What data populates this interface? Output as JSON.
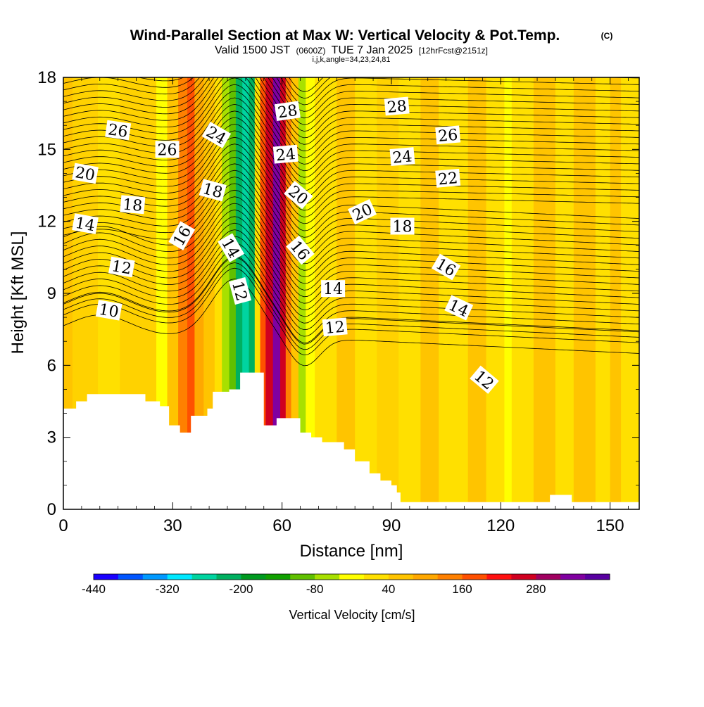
{
  "title": {
    "main": "Wind-Parallel Section at Max W: Vertical Velocity & Pot.Temp.",
    "copyright": "(C)",
    "valid_prefix": "Valid 1500 JST",
    "valid_z": "(0600Z)",
    "valid_date": "TUE 7 Jan 2025",
    "forecast": "[12hrFcst@2151z]",
    "indices": "i,j,k,angle=34,23,24,81"
  },
  "chart_data": {
    "type": "heatmap",
    "xlabel": "Distance [nm]",
    "ylabel": "Height [Kft MSL]",
    "xlim": [
      0,
      158
    ],
    "ylim": [
      0,
      18
    ],
    "x_ticks": [
      0,
      30,
      60,
      90,
      120,
      150
    ],
    "y_ticks": [
      0,
      3,
      6,
      9,
      12,
      15,
      18
    ],
    "colorbar": {
      "label": "Vertical Velocity [cm/s]",
      "tick_values": [
        -440,
        -320,
        -200,
        -80,
        40,
        160,
        280
      ],
      "colors": [
        "#1a00ff",
        "#0055ff",
        "#0099ff",
        "#00e8ff",
        "#00d4a0",
        "#00b060",
        "#009a20",
        "#10a000",
        "#60c000",
        "#a8e000",
        "#ffff00",
        "#ffe000",
        "#ffc400",
        "#ffa800",
        "#ff8000",
        "#ff5000",
        "#ff1010",
        "#d00020",
        "#a00060",
        "#8000a0",
        "#5800a0"
      ]
    },
    "velocity_columns": [
      {
        "x": 0,
        "w": 2.5,
        "color": "#ffc400"
      },
      {
        "x": 2.5,
        "w": 7,
        "color": "#ffd200"
      },
      {
        "x": 9.5,
        "w": 6,
        "color": "#ffe000"
      },
      {
        "x": 15.5,
        "w": 10,
        "color": "#ffd200"
      },
      {
        "x": 25.5,
        "w": 3,
        "color": "#ffff00"
      },
      {
        "x": 28.5,
        "w": 3,
        "color": "#ffc400"
      },
      {
        "x": 31.5,
        "w": 2.5,
        "color": "#ff8000"
      },
      {
        "x": 34,
        "w": 2,
        "color": "#ff5000"
      },
      {
        "x": 36,
        "w": 2.5,
        "color": "#ffa800"
      },
      {
        "x": 38.5,
        "w": 3,
        "color": "#ffc400"
      },
      {
        "x": 41.5,
        "w": 2,
        "color": "#ffe000"
      },
      {
        "x": 43.5,
        "w": 2,
        "color": "#a8e000"
      },
      {
        "x": 45.5,
        "w": 1.8,
        "color": "#60c000"
      },
      {
        "x": 47.3,
        "w": 1.8,
        "color": "#00b060"
      },
      {
        "x": 49.1,
        "w": 1.8,
        "color": "#00d4a0"
      },
      {
        "x": 50.9,
        "w": 1.6,
        "color": "#00b060"
      },
      {
        "x": 52.5,
        "w": 1.5,
        "color": "#ffe000"
      },
      {
        "x": 54,
        "w": 1.5,
        "color": "#ff5000"
      },
      {
        "x": 55.5,
        "w": 2,
        "color": "#d00020"
      },
      {
        "x": 57.5,
        "w": 2,
        "color": "#8000a0"
      },
      {
        "x": 59.5,
        "w": 1.5,
        "color": "#d00020"
      },
      {
        "x": 61,
        "w": 1.5,
        "color": "#ff8000"
      },
      {
        "x": 62.5,
        "w": 2,
        "color": "#ffc400"
      },
      {
        "x": 64.5,
        "w": 2,
        "color": "#a8e000"
      },
      {
        "x": 66.5,
        "w": 2.5,
        "color": "#ffff00"
      },
      {
        "x": 69,
        "w": 6,
        "color": "#ffe000"
      },
      {
        "x": 75,
        "w": 5,
        "color": "#ffc400"
      },
      {
        "x": 80,
        "w": 6,
        "color": "#ffe000"
      },
      {
        "x": 86,
        "w": 6,
        "color": "#ffd200"
      },
      {
        "x": 92,
        "w": 6,
        "color": "#ffe000"
      },
      {
        "x": 98,
        "w": 5,
        "color": "#ffc400"
      },
      {
        "x": 103,
        "w": 8,
        "color": "#ffe000"
      },
      {
        "x": 111,
        "w": 5,
        "color": "#ffc400"
      },
      {
        "x": 116,
        "w": 5,
        "color": "#ffe000"
      },
      {
        "x": 121,
        "w": 2,
        "color": "#ffff00"
      },
      {
        "x": 123,
        "w": 6,
        "color": "#ffe000"
      },
      {
        "x": 129,
        "w": 6,
        "color": "#ffc400"
      },
      {
        "x": 135,
        "w": 5,
        "color": "#ffe000"
      },
      {
        "x": 140,
        "w": 6,
        "color": "#ffc400"
      },
      {
        "x": 146,
        "w": 4,
        "color": "#ffe000"
      },
      {
        "x": 150,
        "w": 3,
        "color": "#ffc400"
      },
      {
        "x": 153,
        "w": 5,
        "color": "#ffe000"
      }
    ],
    "terrain_steps": [
      [
        0,
        4.2
      ],
      [
        3.5,
        4.5
      ],
      [
        6.5,
        4.8
      ],
      [
        22.5,
        4.5
      ],
      [
        26.5,
        4.3
      ],
      [
        29,
        3.5
      ],
      [
        32,
        3.2
      ],
      [
        35,
        3.9
      ],
      [
        39.5,
        4.2
      ],
      [
        41,
        4.9
      ],
      [
        45.5,
        5.0
      ],
      [
        48.5,
        5.7
      ],
      [
        55,
        3.5
      ],
      [
        58.5,
        3.8
      ],
      [
        65,
        3.2
      ],
      [
        68,
        3.0
      ],
      [
        71,
        2.8
      ],
      [
        77,
        2.5
      ],
      [
        80,
        2.0
      ],
      [
        84,
        1.5
      ],
      [
        87,
        1.2
      ],
      [
        90,
        1.0
      ],
      [
        91.5,
        0.7
      ],
      [
        92.5,
        0.3
      ],
      [
        133.5,
        0.6
      ],
      [
        139.5,
        0.3
      ],
      [
        158,
        0.3
      ]
    ],
    "theta_contour_labels": [
      {
        "x": 15,
        "y": 15.8,
        "text": "26",
        "angle": 8
      },
      {
        "x": 28.5,
        "y": 15.0,
        "text": "26",
        "angle": 0
      },
      {
        "x": 42,
        "y": 15.6,
        "text": "24",
        "angle": 30
      },
      {
        "x": 61.5,
        "y": 16.6,
        "text": "28",
        "angle": -8
      },
      {
        "x": 91.5,
        "y": 16.8,
        "text": "28",
        "angle": -5
      },
      {
        "x": 105.5,
        "y": 15.6,
        "text": "26",
        "angle": -5
      },
      {
        "x": 61,
        "y": 14.8,
        "text": "24",
        "angle": -5
      },
      {
        "x": 93,
        "y": 14.7,
        "text": "24",
        "angle": -5
      },
      {
        "x": 6,
        "y": 14.0,
        "text": "20",
        "angle": 10
      },
      {
        "x": 105.5,
        "y": 13.8,
        "text": "22",
        "angle": -5
      },
      {
        "x": 41,
        "y": 13.3,
        "text": "18",
        "angle": 15
      },
      {
        "x": 64.5,
        "y": 13.1,
        "text": "20",
        "angle": 40
      },
      {
        "x": 82,
        "y": 12.4,
        "text": "20",
        "angle": -25
      },
      {
        "x": 19,
        "y": 12.7,
        "text": "18",
        "angle": 5
      },
      {
        "x": 6,
        "y": 11.9,
        "text": "14",
        "angle": 10
      },
      {
        "x": 93,
        "y": 11.8,
        "text": "18",
        "angle": 0
      },
      {
        "x": 32.5,
        "y": 11.4,
        "text": "16",
        "angle": -60
      },
      {
        "x": 46,
        "y": 10.9,
        "text": "14",
        "angle": 60
      },
      {
        "x": 65,
        "y": 10.8,
        "text": "16",
        "angle": 50
      },
      {
        "x": 16,
        "y": 10.1,
        "text": "12",
        "angle": 10
      },
      {
        "x": 105,
        "y": 10.1,
        "text": "16",
        "angle": 30
      },
      {
        "x": 48.5,
        "y": 9.1,
        "text": "12",
        "angle": 75
      },
      {
        "x": 74,
        "y": 9.2,
        "text": "14",
        "angle": 0
      },
      {
        "x": 108.5,
        "y": 8.4,
        "text": "14",
        "angle": 25
      },
      {
        "x": 12.5,
        "y": 8.3,
        "text": "10",
        "angle": 10
      },
      {
        "x": 74.5,
        "y": 7.6,
        "text": "12",
        "angle": -5
      },
      {
        "x": 115.5,
        "y": 5.4,
        "text": "12",
        "angle": 40
      }
    ]
  }
}
